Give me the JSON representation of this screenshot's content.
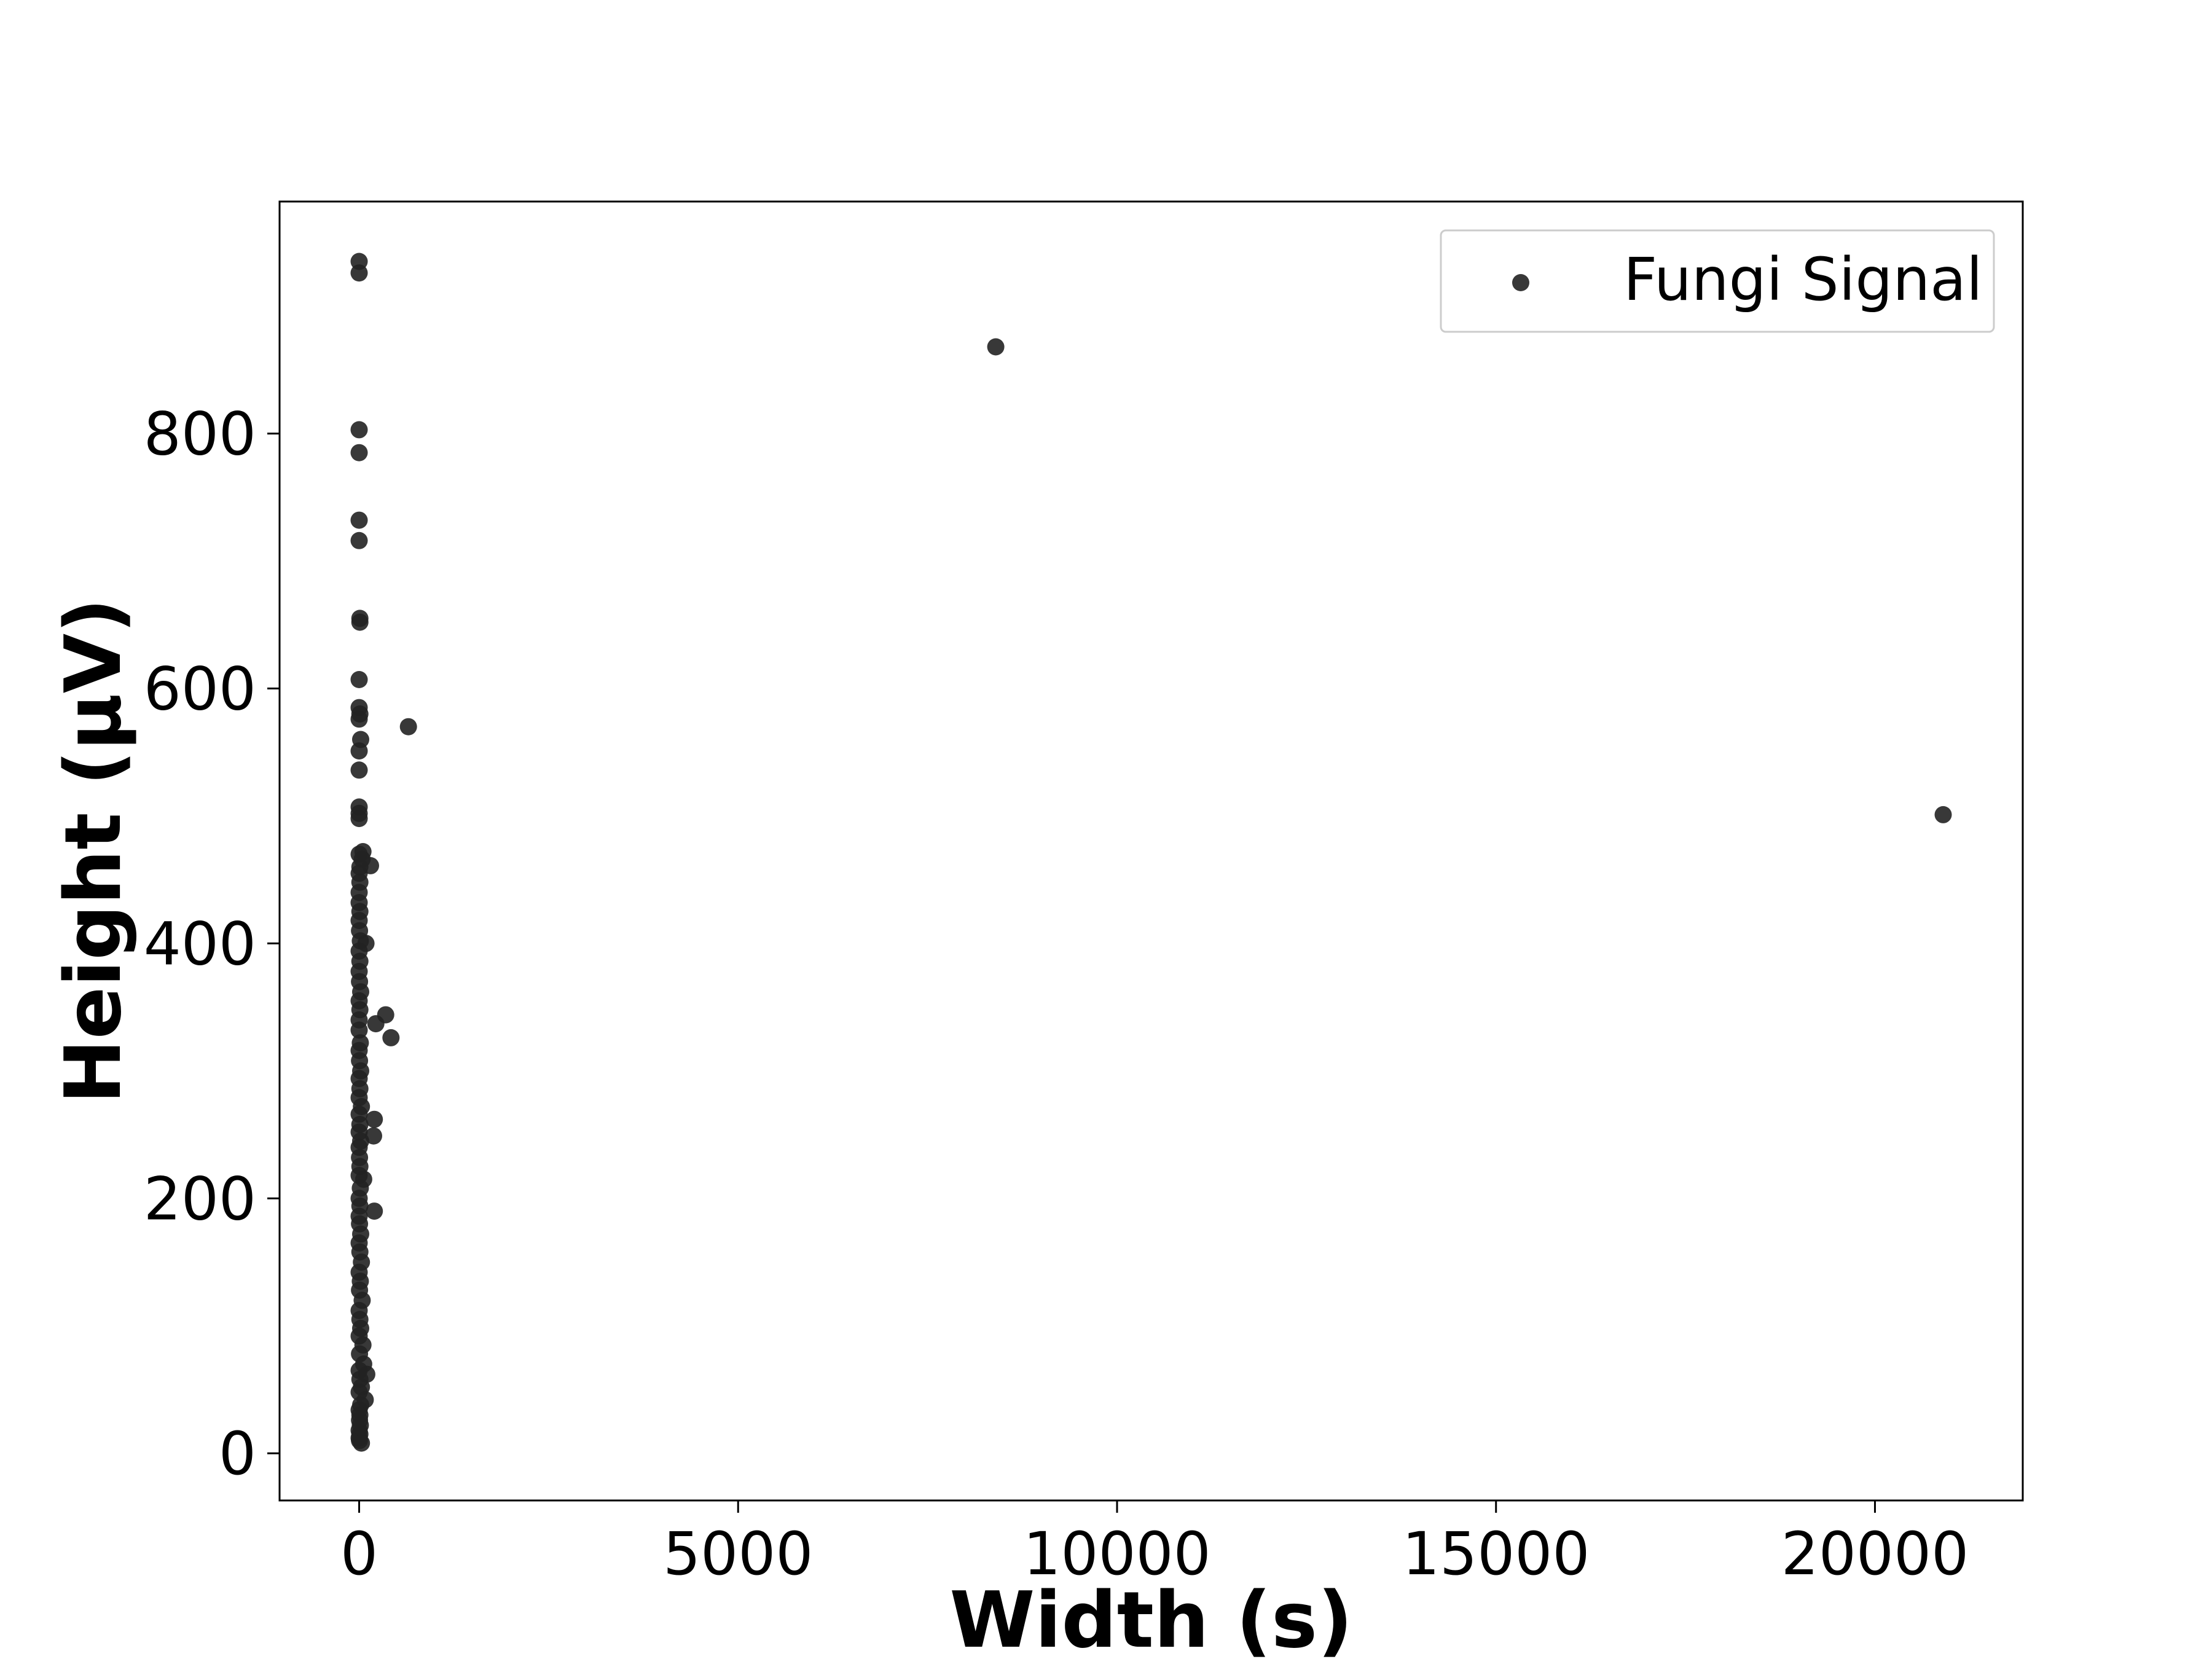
{
  "chart_data": {
    "type": "scatter",
    "xlabel": "Width (s)",
    "ylabel": "Height (µV)",
    "xlim": [
      -1050,
      21950
    ],
    "ylim": [
      -37,
      982
    ],
    "xticks": [
      0,
      5000,
      10000,
      15000,
      20000
    ],
    "xtick_labels": [
      "0",
      "5000",
      "10000",
      "15000",
      "20000"
    ],
    "yticks": [
      0,
      200,
      400,
      600,
      800
    ],
    "ytick_labels": [
      "0",
      "200",
      "400",
      "600",
      "800"
    ],
    "grid": false,
    "legend": {
      "position": "top-right",
      "entries": [
        "Fungi Signal"
      ]
    },
    "series": [
      {
        "name": "Fungi Signal",
        "color": "#222222",
        "points": [
          [
            0,
            935
          ],
          [
            0,
            926
          ],
          [
            0,
            803
          ],
          [
            0,
            785
          ],
          [
            0,
            732
          ],
          [
            0,
            716
          ],
          [
            10,
            655
          ],
          [
            10,
            652
          ],
          [
            0,
            607
          ],
          [
            0,
            585
          ],
          [
            10,
            580
          ],
          [
            0,
            576
          ],
          [
            20,
            560
          ],
          [
            0,
            551
          ],
          [
            0,
            536
          ],
          [
            0,
            507
          ],
          [
            0,
            502
          ],
          [
            0,
            498
          ],
          [
            0,
            470
          ],
          [
            40,
            466
          ],
          [
            10,
            460
          ],
          [
            0,
            455
          ],
          [
            50,
            472
          ],
          [
            150,
            461
          ],
          [
            650,
            570
          ],
          [
            8400,
            868
          ],
          [
            20900,
            501
          ],
          [
            10,
            448
          ],
          [
            0,
            440
          ],
          [
            0,
            432
          ],
          [
            10,
            425
          ],
          [
            0,
            418
          ],
          [
            5,
            410
          ],
          [
            15,
            402
          ],
          [
            90,
            400
          ],
          [
            0,
            394
          ],
          [
            10,
            386
          ],
          [
            0,
            378
          ],
          [
            5,
            370
          ],
          [
            20,
            362
          ],
          [
            0,
            355
          ],
          [
            10,
            348
          ],
          [
            350,
            344
          ],
          [
            0,
            340
          ],
          [
            220,
            337
          ],
          [
            0,
            332
          ],
          [
            420,
            326
          ],
          [
            15,
            322
          ],
          [
            0,
            316
          ],
          [
            5,
            308
          ],
          [
            20,
            300
          ],
          [
            0,
            294
          ],
          [
            10,
            286
          ],
          [
            0,
            279
          ],
          [
            30,
            272
          ],
          [
            0,
            266
          ],
          [
            200,
            262
          ],
          [
            10,
            258
          ],
          [
            0,
            252
          ],
          [
            190,
            249
          ],
          [
            20,
            245
          ],
          [
            0,
            240
          ],
          [
            5,
            232
          ],
          [
            10,
            225
          ],
          [
            0,
            218
          ],
          [
            60,
            215
          ],
          [
            15,
            208
          ],
          [
            0,
            200
          ],
          [
            10,
            194
          ],
          [
            200,
            190
          ],
          [
            0,
            186
          ],
          [
            5,
            180
          ],
          [
            20,
            172
          ],
          [
            0,
            165
          ],
          [
            10,
            158
          ],
          [
            30,
            150
          ],
          [
            0,
            142
          ],
          [
            15,
            135
          ],
          [
            5,
            128
          ],
          [
            40,
            120
          ],
          [
            0,
            112
          ],
          [
            10,
            105
          ],
          [
            20,
            98
          ],
          [
            0,
            92
          ],
          [
            50,
            85
          ],
          [
            5,
            78
          ],
          [
            60,
            70
          ],
          [
            0,
            65
          ],
          [
            100,
            62
          ],
          [
            10,
            58
          ],
          [
            30,
            52
          ],
          [
            0,
            48
          ],
          [
            80,
            42
          ],
          [
            20,
            38
          ],
          [
            0,
            34
          ],
          [
            10,
            30
          ],
          [
            5,
            26
          ],
          [
            15,
            22
          ],
          [
            0,
            18
          ],
          [
            10,
            15
          ],
          [
            0,
            12
          ],
          [
            5,
            10
          ],
          [
            30,
            8
          ]
        ]
      }
    ]
  }
}
